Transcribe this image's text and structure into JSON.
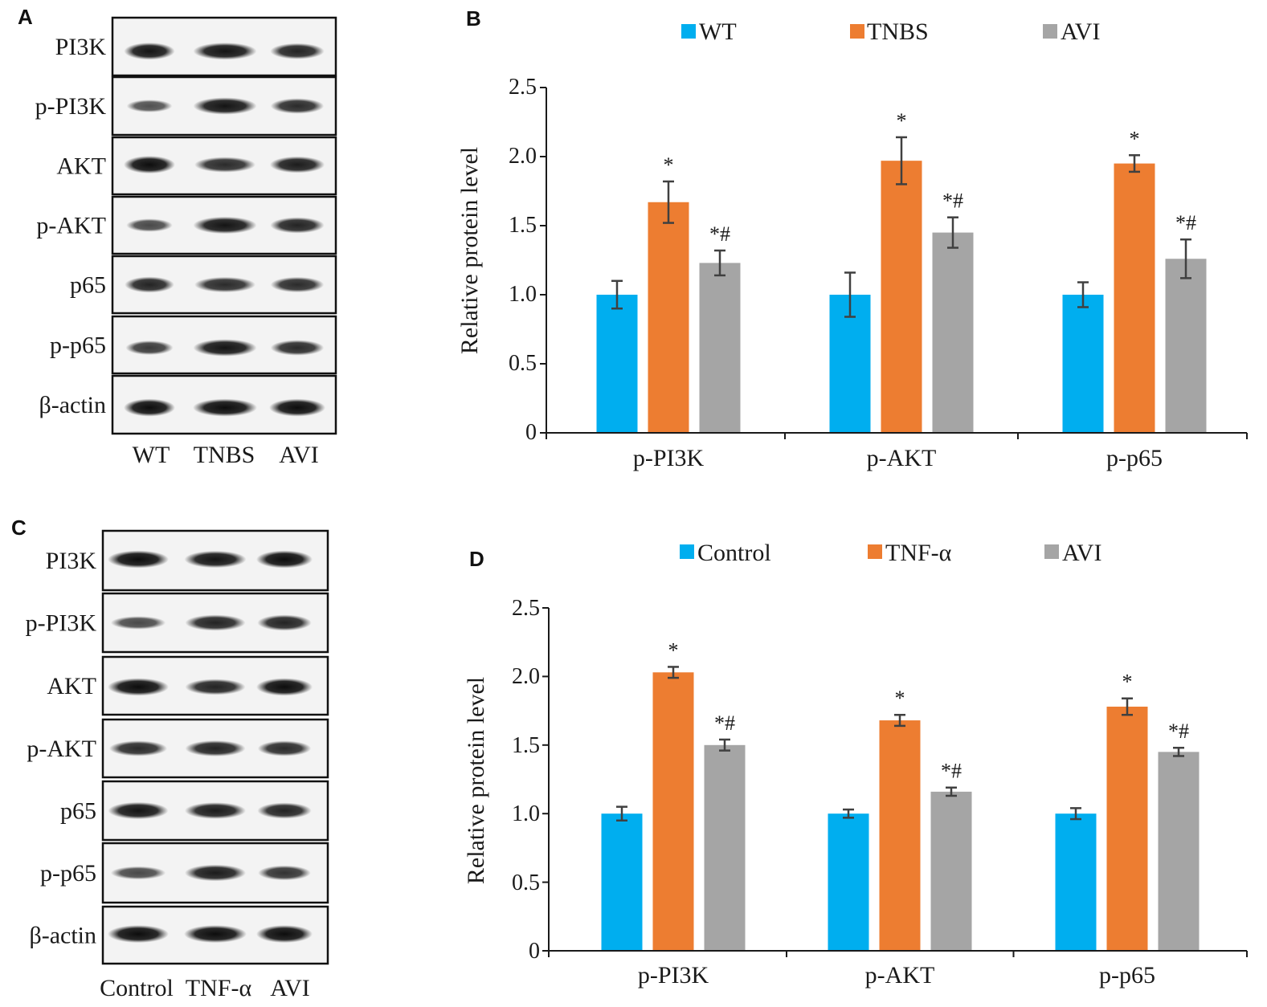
{
  "panels": {
    "A": "A",
    "B": "B",
    "C": "C",
    "D": "D"
  },
  "blots": [
    {
      "panel": "A",
      "proteins": [
        "PI3K",
        "p-PI3K",
        "AKT",
        "p-AKT",
        "p65",
        "p-p65",
        "β-actin"
      ],
      "lanes": [
        "WT",
        "TNBS",
        "AVI"
      ]
    },
    {
      "panel": "C",
      "proteins": [
        "PI3K",
        "p-PI3K",
        "AKT",
        "p-AKT",
        "p65",
        "p-p65",
        "β-actin"
      ],
      "lanes": [
        "Control",
        "TNF-α",
        "AVI"
      ]
    }
  ],
  "colors": {
    "series1": "#00aeef",
    "series2": "#ed7d31",
    "series3": "#a5a5a5",
    "error_bar": "#404040",
    "axis": "#1a1a1a"
  },
  "chart_data": [
    {
      "panel": "B",
      "type": "bar",
      "categories": [
        "p-PI3K",
        "p-AKT",
        "p-p65"
      ],
      "series": [
        {
          "name": "WT",
          "values": [
            1.0,
            1.0,
            1.0
          ],
          "errors": [
            0.1,
            0.16,
            0.09
          ]
        },
        {
          "name": "TNBS",
          "values": [
            1.67,
            1.97,
            1.95
          ],
          "errors": [
            0.15,
            0.17,
            0.06
          ]
        },
        {
          "name": "AVI",
          "values": [
            1.23,
            1.45,
            1.26
          ],
          "errors": [
            0.09,
            0.11,
            0.14
          ]
        }
      ],
      "significance": [
        [
          "",
          "",
          ""
        ],
        [
          "*",
          "*",
          "*"
        ],
        [
          "*#",
          "*#",
          "*#"
        ]
      ],
      "xlabel": "",
      "ylabel": "Relative protein level",
      "ylim": [
        0,
        2.5
      ],
      "yticks": [
        "0",
        "0.5",
        "1.0",
        "1.5",
        "2.0",
        "2.5"
      ],
      "legend": "top",
      "grid": false
    },
    {
      "panel": "D",
      "type": "bar",
      "categories": [
        "p-PI3K",
        "p-AKT",
        "p-p65"
      ],
      "series": [
        {
          "name": "Control",
          "values": [
            1.0,
            1.0,
            1.0
          ],
          "errors": [
            0.05,
            0.03,
            0.04
          ]
        },
        {
          "name": "TNF-α",
          "values": [
            2.03,
            1.68,
            1.78
          ],
          "errors": [
            0.04,
            0.04,
            0.06
          ]
        },
        {
          "name": "AVI",
          "values": [
            1.5,
            1.16,
            1.45
          ],
          "errors": [
            0.04,
            0.03,
            0.03
          ]
        }
      ],
      "significance": [
        [
          "",
          "",
          ""
        ],
        [
          "*",
          "*",
          "*"
        ],
        [
          "*#",
          "*#",
          "*#"
        ]
      ],
      "xlabel": "",
      "ylabel": "Relative protein level",
      "ylim": [
        0,
        2.5
      ],
      "yticks": [
        "0",
        "0.5",
        "1.0",
        "1.5",
        "2.0",
        "2.5"
      ],
      "legend": "top",
      "grid": false
    }
  ]
}
